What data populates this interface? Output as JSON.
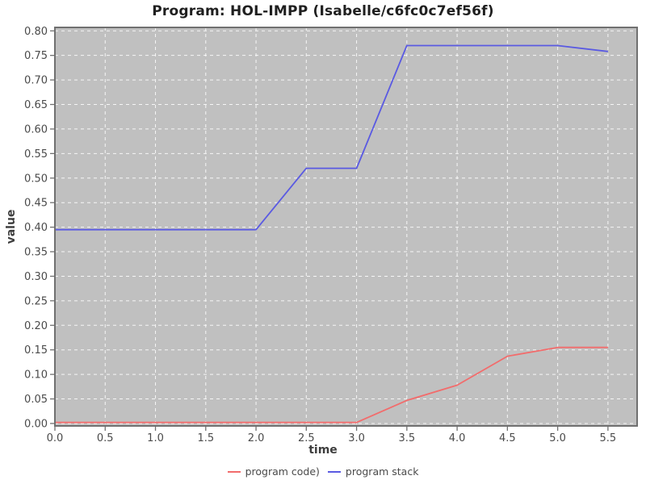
{
  "title": "Program: HOL-IMPP (Isabelle/c6fc0c7ef56f)",
  "axes": {
    "xlabel": "time",
    "ylabel": "value"
  },
  "legend": {
    "items": [
      {
        "label": "program code)",
        "color": "#f26c6c"
      },
      {
        "label": "program stack",
        "color": "#5a5ae2"
      }
    ]
  },
  "style": {
    "page_background": "#ffffff",
    "plot_background": "#c0c0c0",
    "grid_color": "#ffffff",
    "border_color": "#707070",
    "tick_label_color": "#4a4a4a",
    "title_color": "#1f1f1f",
    "axis_label_color": "#3d3d3d"
  },
  "chart_data": {
    "type": "line",
    "title": "Program: HOL-IMPP (Isabelle/c6fc0c7ef56f)",
    "xlabel": "time",
    "ylabel": "value",
    "x": [
      0.0,
      0.5,
      1.0,
      1.5,
      2.0,
      2.5,
      3.0,
      3.5,
      4.0,
      4.5,
      5.0,
      5.5
    ],
    "series": [
      {
        "name": "program code)",
        "color": "#f26c6c",
        "values": [
          0.002,
          0.002,
          0.002,
          0.002,
          0.002,
          0.002,
          0.002,
          0.047,
          0.078,
          0.137,
          0.155,
          0.155
        ]
      },
      {
        "name": "program stack",
        "color": "#5a5ae2",
        "values": [
          0.395,
          0.395,
          0.395,
          0.395,
          0.395,
          0.52,
          0.52,
          0.77,
          0.77,
          0.77,
          0.77,
          0.758
        ]
      }
    ],
    "x_ticks": [
      0.0,
      0.5,
      1.0,
      1.5,
      2.0,
      2.5,
      3.0,
      3.5,
      4.0,
      4.5,
      5.0,
      5.5
    ],
    "y_ticks": [
      0.0,
      0.05,
      0.1,
      0.15,
      0.2,
      0.25,
      0.3,
      0.35,
      0.4,
      0.45,
      0.5,
      0.55,
      0.6,
      0.65,
      0.7,
      0.75,
      0.8
    ],
    "xlim": [
      0,
      5.79
    ],
    "ylim": [
      -0.005,
      0.807
    ],
    "grid": true,
    "legend_position": "bottom"
  }
}
